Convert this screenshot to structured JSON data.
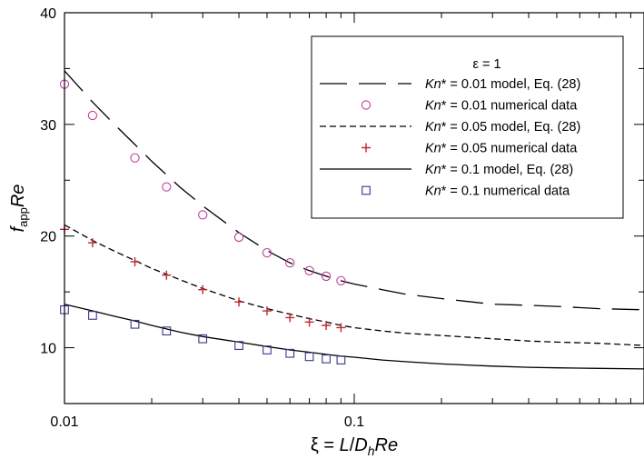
{
  "chart_data": {
    "type": "line",
    "title": "",
    "xlabel": {
      "prefix": "ξ = ",
      "L": "L",
      "slash": "/",
      "D": "D",
      "h": "h",
      "Re": "Re"
    },
    "ylabel": {
      "f": "f",
      "sub": "app",
      "Re": "Re"
    },
    "x_scale": "log",
    "xlim": [
      0.01,
      1
    ],
    "ylim": [
      5,
      40
    ],
    "x_ticks": [
      0.01,
      0.1
    ],
    "x_tick_labels": [
      "0.01",
      "0.1"
    ],
    "y_ticks": [
      10,
      20,
      30,
      40
    ],
    "y_tick_labels": [
      "10",
      "20",
      "30",
      "40"
    ],
    "grid": false,
    "legend": {
      "placement": "top-right",
      "title": "ε = 1",
      "entries": [
        {
          "italic": "Kn",
          "text": "* = 0.01 model, Eq. (28)",
          "marker": "long-dash",
          "color": "#000000"
        },
        {
          "italic": "Kn",
          "text": "* = 0.01 numerical data",
          "marker": "circle",
          "color": "#c0409a"
        },
        {
          "italic": "Kn",
          "text": "* = 0.05 model, Eq. (28)",
          "marker": "short-dash",
          "color": "#000000"
        },
        {
          "italic": "Kn",
          "text": "* = 0.05 numerical data",
          "marker": "plus",
          "color": "#c0282d"
        },
        {
          "italic": "Kn",
          "text": "* = 0.1 model, Eq. (28)",
          "marker": "solid",
          "color": "#000000"
        },
        {
          "italic": "Kn",
          "text": "* = 0.1 numerical data",
          "marker": "square",
          "color": "#35358a"
        }
      ]
    },
    "series": [
      {
        "name": "Kn* = 0.01 model, Eq. (28)",
        "kind": "line",
        "dash": "long",
        "color": "#000000",
        "x": [
          0.01,
          0.0125,
          0.015,
          0.0175,
          0.02,
          0.025,
          0.03,
          0.04,
          0.05,
          0.06,
          0.07,
          0.08,
          0.09,
          0.1,
          0.125,
          0.15,
          0.2,
          0.3,
          0.4,
          0.5,
          0.7,
          1.0
        ],
        "y": [
          34.8,
          32.0,
          29.9,
          28.2,
          26.7,
          24.4,
          22.7,
          20.3,
          18.7,
          17.6,
          16.9,
          16.4,
          16.0,
          15.7,
          15.2,
          14.8,
          14.4,
          13.9,
          13.8,
          13.7,
          13.5,
          13.4
        ]
      },
      {
        "name": "Kn* = 0.01 numerical data",
        "kind": "scatter",
        "marker": "circle",
        "color": "#c0409a",
        "x": [
          0.01,
          0.0125,
          0.0175,
          0.0225,
          0.03,
          0.04,
          0.05,
          0.06,
          0.07,
          0.08,
          0.09
        ],
        "y": [
          33.6,
          30.8,
          27.0,
          24.4,
          21.9,
          19.9,
          18.5,
          17.6,
          16.9,
          16.4,
          16.0
        ]
      },
      {
        "name": "Kn* = 0.05 model, Eq. (28)",
        "kind": "line",
        "dash": "short",
        "color": "#000000",
        "x": [
          0.01,
          0.0125,
          0.015,
          0.0175,
          0.02,
          0.025,
          0.03,
          0.04,
          0.05,
          0.06,
          0.07,
          0.08,
          0.09,
          0.1,
          0.125,
          0.15,
          0.2,
          0.3,
          0.4,
          0.5,
          0.7,
          1.0
        ],
        "y": [
          21.0,
          19.6,
          18.6,
          17.8,
          17.1,
          16.1,
          15.3,
          14.2,
          13.5,
          13.0,
          12.6,
          12.3,
          12.0,
          11.8,
          11.5,
          11.3,
          11.1,
          10.8,
          10.6,
          10.5,
          10.4,
          10.2
        ]
      },
      {
        "name": "Kn* = 0.05 numerical data",
        "kind": "scatter",
        "marker": "plus",
        "color": "#c0282d",
        "x": [
          0.01,
          0.0125,
          0.0175,
          0.0225,
          0.03,
          0.04,
          0.05,
          0.06,
          0.07,
          0.08,
          0.09
        ],
        "y": [
          20.6,
          19.4,
          17.7,
          16.5,
          15.2,
          14.1,
          13.3,
          12.7,
          12.3,
          12.0,
          11.8
        ]
      },
      {
        "name": "Kn* = 0.1 model, Eq. (28)",
        "kind": "line",
        "dash": "solid",
        "color": "#000000",
        "x": [
          0.01,
          0.0125,
          0.015,
          0.0175,
          0.02,
          0.025,
          0.03,
          0.04,
          0.05,
          0.06,
          0.07,
          0.08,
          0.09,
          0.1,
          0.125,
          0.15,
          0.2,
          0.3,
          0.4,
          0.5,
          0.7,
          1.0
        ],
        "y": [
          13.9,
          13.3,
          12.8,
          12.4,
          12.0,
          11.4,
          11.0,
          10.5,
          10.1,
          9.8,
          9.6,
          9.4,
          9.25,
          9.15,
          8.9,
          8.75,
          8.55,
          8.35,
          8.25,
          8.2,
          8.15,
          8.1
        ]
      },
      {
        "name": "Kn* = 0.1 numerical data",
        "kind": "scatter",
        "marker": "square",
        "color": "#35358a",
        "x": [
          0.01,
          0.0125,
          0.0175,
          0.0225,
          0.03,
          0.04,
          0.05,
          0.06,
          0.07,
          0.08,
          0.09
        ],
        "y": [
          13.4,
          12.9,
          12.1,
          11.5,
          10.8,
          10.2,
          9.8,
          9.5,
          9.2,
          9.0,
          8.9
        ]
      }
    ]
  }
}
